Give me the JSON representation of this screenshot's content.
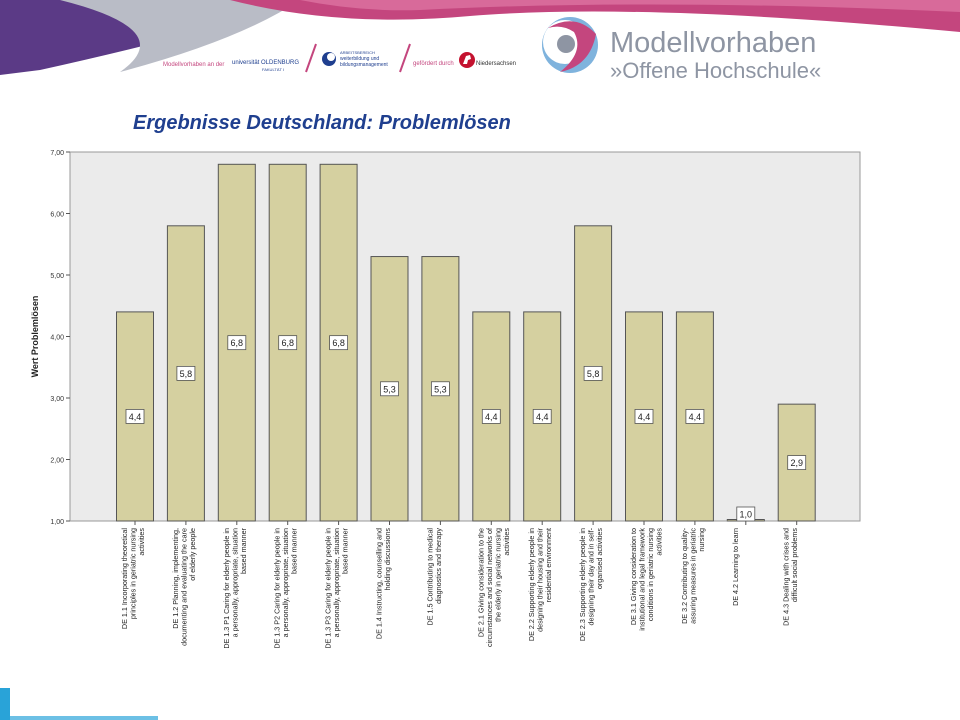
{
  "header": {
    "partner1_prefix": "Modellvorhaben an der",
    "partner1_name": "universität OLDENBURG",
    "partner1_sub": "FAKULTÄT I",
    "partner2_line1": "ARBEITSBEREICH",
    "partner2_line2": "weiterbildung und",
    "partner2_line3": "bildungsmanagement",
    "funded_by": "gefördert durch",
    "state": "Niedersachsen",
    "brand_line1": "Modellvorhaben",
    "brand_line2": "»Offene Hochschule«"
  },
  "slide": {
    "title": "Ergebnisse Deutschland: Problemlösen"
  },
  "colors": {
    "bar_fill": "#d5d0a0",
    "plot_bg": "#ebebeb",
    "title": "#1f3f8f",
    "brand": "#8e95a3",
    "accent_magenta": "#c4467e",
    "accent_blue": "#29a3d8"
  },
  "chart_data": {
    "type": "bar",
    "ylabel": "Wert Problemlösen",
    "xlabel": "",
    "ylim": [
      1,
      7
    ],
    "yticks": [
      "1,00",
      "2,00",
      "3,00",
      "4,00",
      "5,00",
      "6,00",
      "7,00"
    ],
    "grid": false,
    "categories": [
      "DE 1.1 Incorporating theoretical principles in geriatric nursing activities",
      "DE 1.2 Planning, implementing, documenting and evaluating the care of elderly people",
      "DE 1.3 P1 Caring for elderly people in a personally, appropriate, situation based manner",
      "DE 1.3 P2 Caring for elderly people in a personally, appropriate, situation based manner",
      "DE 1.3 P3 Caring for elderly people in a personally, appropriate, situation based manner",
      "DE 1.4 Instructing, counselling and holding discussions",
      "DE 1.5 Contributing to medical diagnostics and therapy",
      "DE 2.1 Giving consideration to the circumstances and social networks of the elderly in geriatric nursing activities",
      "DE 2.2 Supporting elderly people in designing their housing and their residential environment",
      "DE 2.3 Supporting elderly people in designing their day and in self-organised activities",
      "DE 3.1 Giving consideration to institutional and legal framework conditions in geriatric nursing activities",
      "DE 3.2 Contributing to quality-assuring measures in geriatric nursing",
      "DE 4.2 Learning to learn",
      "DE 4.3 Dealing with crises and difficult social problems"
    ],
    "category_lines": [
      [
        "DE 1.1 Incorporating theoretical",
        "principles in geriatric nursing",
        "activities"
      ],
      [
        "DE 1.2 Planning, implementing,",
        "documenting and evaluating the care",
        "of elderly people"
      ],
      [
        "DE 1.3 P1 Caring for elderly people in",
        "a personally, appropriate, situation",
        "based manner"
      ],
      [
        "DE 1.3 P2 Caring for elderly people in",
        "a personally, appropriate, situation",
        "based manner"
      ],
      [
        "DE 1.3 P3 Caring for elderly people in",
        "a personally, appropriate, situation",
        "based manner"
      ],
      [
        "DE 1.4 Instructing, counselling and",
        "holding discussions"
      ],
      [
        "DE 1.5 Contributing to medical",
        "diagnostics and therapy"
      ],
      [
        "DE 2.1 Giving consideration to the",
        "circumstances and social networks of",
        "the elderly in geriatric nursing",
        "activities"
      ],
      [
        "DE 2.2 Supporting elderly people in",
        "designing their housing and their",
        "residential environment"
      ],
      [
        "DE 2.3 Supporting elderly people in",
        "designing their day and in self-",
        "organised activities"
      ],
      [
        "DE 3.1 Giving consideration to",
        "institutional and legal framework",
        "conditions in geriatric nursing",
        "activities"
      ],
      [
        "DE 3.2 Contributing to quality-",
        "assuring measures in geriatric",
        "nursing"
      ],
      [
        "DE 4.2 Learning to learn"
      ],
      [
        "DE 4.3 Dealing with crises and",
        "difficult social problems"
      ]
    ],
    "values": [
      4.4,
      5.8,
      6.8,
      6.8,
      6.8,
      5.3,
      5.3,
      4.4,
      4.4,
      5.8,
      4.4,
      4.4,
      1.0,
      2.9
    ],
    "data_labels": [
      "4,4",
      "5,8",
      "6,8",
      "6,8",
      "6,8",
      "5,3",
      "5,3",
      "4,4",
      "4,4",
      "5,8",
      "4,4",
      "4,4",
      "1,0",
      "2,9"
    ]
  }
}
